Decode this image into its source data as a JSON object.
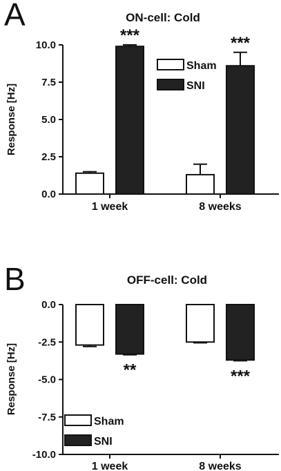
{
  "chart_data": [
    {
      "type": "bar",
      "panel": "A",
      "title": "ON-cell: Cold",
      "ylabel": "Response [Hz]",
      "xlabel": "",
      "categories": [
        "1 week",
        "8 weeks"
      ],
      "ylim": [
        0,
        10
      ],
      "yticks": [
        0,
        2.5,
        5,
        7.5,
        10
      ],
      "ytick_labels": [
        "0.0",
        "2.5",
        "5.0",
        "7.5",
        "10.0"
      ],
      "series": [
        {
          "name": "Sham",
          "color": "#ffffff",
          "values": [
            1.4,
            1.3
          ],
          "errors": [
            0.1,
            0.7
          ]
        },
        {
          "name": "SNI",
          "color": "#222222",
          "values": [
            9.9,
            8.6
          ],
          "errors": [
            0.1,
            0.9
          ]
        }
      ],
      "annotations": [
        {
          "category": "1 week",
          "series": "SNI",
          "text": "***"
        },
        {
          "category": "8 weeks",
          "series": "SNI",
          "text": "***"
        }
      ],
      "legend_position": "top-right"
    },
    {
      "type": "bar",
      "panel": "B",
      "title": "OFF-cell: Cold",
      "ylabel": "Response [Hz]",
      "xlabel": "",
      "categories": [
        "1 week",
        "8 weeks"
      ],
      "ylim": [
        -10,
        0
      ],
      "yticks": [
        0,
        -2.5,
        -5,
        -7.5,
        -10
      ],
      "ytick_labels": [
        "0.0",
        "-2.5",
        "-5.0",
        "-7.5",
        "-10.0"
      ],
      "series": [
        {
          "name": "Sham",
          "color": "#ffffff",
          "values": [
            -2.7,
            -2.5
          ],
          "errors": [
            0.1,
            0.05
          ]
        },
        {
          "name": "SNI",
          "color": "#222222",
          "values": [
            -3.3,
            -3.7
          ],
          "errors": [
            0.05,
            0.05
          ]
        }
      ],
      "annotations": [
        {
          "category": "1 week",
          "series": "SNI",
          "text": "**"
        },
        {
          "category": "8 weeks",
          "series": "SNI",
          "text": "***"
        }
      ],
      "legend_position": "bottom-left"
    }
  ]
}
